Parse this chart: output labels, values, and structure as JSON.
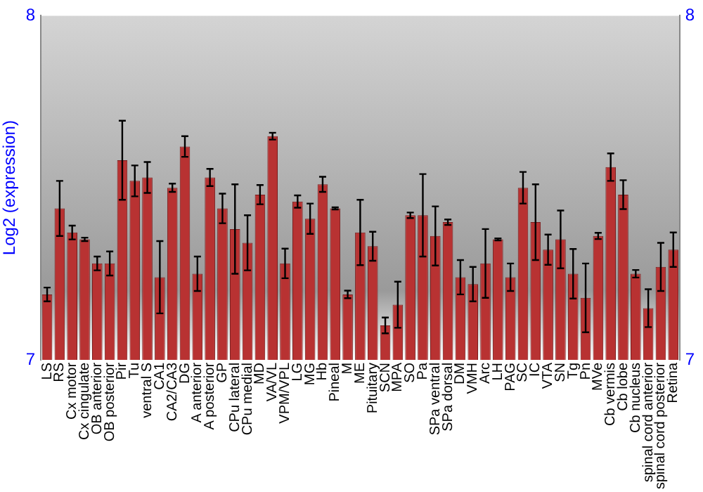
{
  "chart_data": {
    "type": "bar",
    "ylabel": "Log2 (expression)",
    "categories": [
      "LS",
      "RS",
      "Cx motor",
      "Cx cingulate",
      "OB anterior",
      "OB posterior",
      "Pir",
      "Tu",
      "ventral S",
      "CA1",
      "CA2/CA3",
      "DG",
      "A anterior",
      "A posterior",
      "GP",
      "CPu lateral",
      "CPu medial",
      "MD",
      "VA/VL",
      "VPM/VPL",
      "LG",
      "MG",
      "Hb",
      "Pineal",
      "M",
      "ME",
      "Pituitary",
      "SCN",
      "MPA",
      "SO",
      "Pa",
      "SPa ventral",
      "SPa dorsal",
      "DM",
      "VMH",
      "Arc",
      "LH",
      "PAG",
      "SC",
      "IC",
      "VTA",
      "SN",
      "Tg",
      "Pn",
      "MVe",
      "Cb vermis",
      "Cb lobe",
      "Cb nucleus",
      "spinal cord anterior",
      "spinal cord posterior",
      "Retina"
    ],
    "values": [
      7.19,
      7.44,
      7.37,
      7.35,
      7.28,
      7.28,
      7.58,
      7.52,
      7.53,
      7.24,
      7.5,
      7.62,
      7.25,
      7.53,
      7.44,
      7.38,
      7.34,
      7.48,
      7.65,
      7.28,
      7.46,
      7.41,
      7.51,
      7.44,
      7.19,
      7.37,
      7.33,
      7.1,
      7.16,
      7.42,
      7.42,
      7.36,
      7.4,
      7.24,
      7.22,
      7.28,
      7.35,
      7.24,
      7.5,
      7.4,
      7.32,
      7.35,
      7.25,
      7.18,
      7.36,
      7.56,
      7.48,
      7.25,
      7.15,
      7.27,
      7.32
    ],
    "errors": [
      0.02,
      0.08,
      0.02,
      0.005,
      0.02,
      0.035,
      0.115,
      0.045,
      0.045,
      0.105,
      0.012,
      0.03,
      0.05,
      0.025,
      0.043,
      0.13,
      0.08,
      0.028,
      0.01,
      0.043,
      0.018,
      0.044,
      0.022,
      0.003,
      0.011,
      0.095,
      0.042,
      0.023,
      0.067,
      0.008,
      0.12,
      0.086,
      0.008,
      0.05,
      0.05,
      0.1,
      0.003,
      0.04,
      0.046,
      0.11,
      0.044,
      0.084,
      0.072,
      0.1,
      0.009,
      0.04,
      0.042,
      0.011,
      0.055,
      0.07,
      0.05
    ],
    "color": "#b83232",
    "ylim": [
      7,
      8
    ],
    "yticks": [
      7,
      8
    ],
    "y2lim": [
      7,
      8
    ],
    "y2ticks": [
      7,
      8
    ],
    "grid": false,
    "legend": false
  }
}
